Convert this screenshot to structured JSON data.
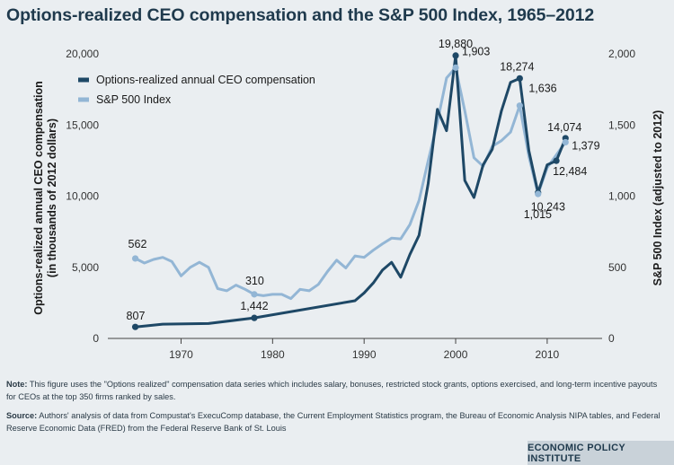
{
  "title": "Options-realized CEO compensation and the S&P 500 Index, 1965–2012",
  "notes": {
    "note_label": "Note:",
    "note_text": " This figure uses the \"Options realized\" compensation data series which includes salary, bonuses, restricted stock grants, options exercised, and long-term incentive payouts for CEOs at the top 350 firms ranked by sales.",
    "source_label": "Source:",
    "source_text": " Authors' analysis of data from Compustat's ExecuComp database, the Current Employment Statistics program, the Bureau of Economic Analysis NIPA tables, and Federal Reserve Economic Data (FRED) from the Federal Reserve Bank of St. Louis"
  },
  "brand": "ECONOMIC POLICY INSTITUTE",
  "colors": {
    "ceo": "#1e4866",
    "sp": "#93b6d5",
    "background": "#eaeef1"
  },
  "chart_data": {
    "type": "line",
    "title": "Options-realized CEO compensation and the S&P 500 Index, 1965–2012",
    "xlabel": "",
    "ylabel_left": "Options-realized annual CEO compensation (in thousands of 2012 dollars)",
    "ylabel_left_lines": [
      "Options-realized annual CEO compensation",
      "(in thousands of 2012 dollars)"
    ],
    "ylabel_right": "S&P 500 Index (adjusted to 2012)",
    "xlim": [
      1962,
      2016
    ],
    "ylim_left": [
      0,
      20000
    ],
    "ylim_right": [
      0,
      2000
    ],
    "x_ticks": [
      1970,
      1980,
      1990,
      2000,
      2010
    ],
    "x_tick_labels": [
      "1970",
      "1980",
      "1990",
      "2000",
      "2010"
    ],
    "y_left_ticks": [
      0,
      5000,
      10000,
      15000,
      20000
    ],
    "y_left_tick_labels": [
      "0",
      "5,000",
      "10,000",
      "15,000",
      "20,000"
    ],
    "y_right_ticks": [
      0,
      500,
      1000,
      1500,
      2000
    ],
    "y_right_tick_labels": [
      "0",
      "500",
      "1,000",
      "1,500",
      "2,000"
    ],
    "legend_position": "top-left",
    "series": [
      {
        "name": "Options-realized annual CEO compensation",
        "axis": "left",
        "x": [
          1965,
          1968,
          1973,
          1978,
          1989,
          1990,
          1991,
          1992,
          1993,
          1994,
          1995,
          1996,
          1997,
          1998,
          1999,
          2000,
          2001,
          2002,
          2003,
          2004,
          2005,
          2006,
          2007,
          2008,
          2009,
          2010,
          2011,
          2012
        ],
        "values": [
          807,
          1000,
          1050,
          1442,
          2650,
          3200,
          3900,
          4800,
          5350,
          4300,
          5900,
          7250,
          10900,
          16100,
          14600,
          19880,
          11100,
          9900,
          12200,
          13300,
          16000,
          18000,
          18274,
          13200,
          10243,
          12200,
          12484,
          14074
        ]
      },
      {
        "name": "S&P 500 Index",
        "axis": "right",
        "x": [
          1965,
          1966,
          1967,
          1968,
          1969,
          1970,
          1971,
          1972,
          1973,
          1974,
          1975,
          1976,
          1977,
          1978,
          1979,
          1980,
          1981,
          1982,
          1983,
          1984,
          1985,
          1986,
          1987,
          1988,
          1989,
          1990,
          1991,
          1992,
          1993,
          1994,
          1995,
          1996,
          1997,
          1998,
          1999,
          2000,
          2001,
          2002,
          2003,
          2004,
          2005,
          2006,
          2007,
          2008,
          2009,
          2010,
          2011,
          2012
        ],
        "values": [
          562,
          530,
          555,
          570,
          540,
          440,
          500,
          535,
          500,
          350,
          335,
          375,
          345,
          310,
          300,
          310,
          310,
          280,
          345,
          335,
          380,
          470,
          550,
          495,
          580,
          570,
          620,
          665,
          705,
          700,
          800,
          970,
          1250,
          1520,
          1830,
          1903,
          1600,
          1270,
          1210,
          1350,
          1390,
          1450,
          1636,
          1280,
          1015,
          1200,
          1290,
          1379
        ]
      }
    ],
    "data_labels": [
      {
        "series": "ceo",
        "year": 1965,
        "value": 807,
        "text": "807"
      },
      {
        "series": "ceo",
        "year": 1978,
        "value": 1442,
        "text": "1,442"
      },
      {
        "series": "ceo",
        "year": 2000,
        "value": 19880,
        "text": "19,880"
      },
      {
        "series": "ceo",
        "year": 2007,
        "value": 18274,
        "text": "18,274"
      },
      {
        "series": "ceo",
        "year": 2009,
        "value": 10243,
        "text": "10,243"
      },
      {
        "series": "ceo",
        "year": 2011,
        "value": 12484,
        "text": "12,484"
      },
      {
        "series": "ceo",
        "year": 2012,
        "value": 14074,
        "text": "14,074"
      },
      {
        "series": "sp",
        "year": 1965,
        "value": 562,
        "text": "562"
      },
      {
        "series": "sp",
        "year": 1978,
        "value": 310,
        "text": "310"
      },
      {
        "series": "sp",
        "year": 2000,
        "value": 1903,
        "text": "1,903"
      },
      {
        "series": "sp",
        "year": 2007,
        "value": 1636,
        "text": "1,636"
      },
      {
        "series": "sp",
        "year": 2009,
        "value": 1015,
        "text": "1,015"
      },
      {
        "series": "sp",
        "year": 2012,
        "value": 1379,
        "text": "1,379"
      }
    ]
  }
}
